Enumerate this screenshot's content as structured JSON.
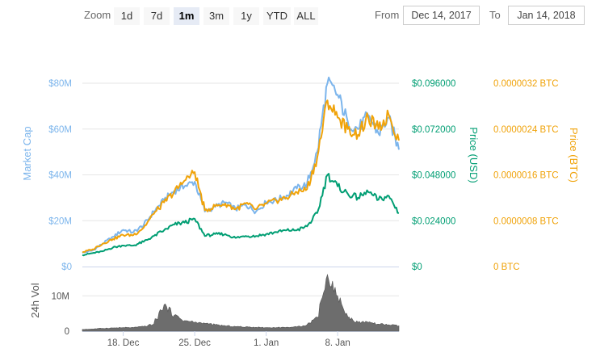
{
  "range_selector": {
    "zoom_label": "Zoom",
    "buttons": [
      "1d",
      "7d",
      "1m",
      "3m",
      "1y",
      "YTD",
      "ALL"
    ],
    "selected": "1m",
    "from_label": "From",
    "from_value": "Dec 14, 2017",
    "to_label": "To",
    "to_value": "Jan 14, 2018"
  },
  "colors": {
    "market_cap": "#7cb5ec",
    "price_usd": "#009e73",
    "price_btc": "#f0a30a",
    "volume": "#6d6d6d"
  },
  "chart_data": [
    {
      "type": "line",
      "x_range": [
        "2017-12-14",
        "2018-01-14"
      ],
      "x_ticks": [
        "18. Dec",
        "25. Dec",
        "1. Jan",
        "8. Jan"
      ],
      "axes": {
        "market_cap": {
          "label": "Market Cap",
          "ticks": [
            "$0",
            "$20M",
            "$40M",
            "$60M",
            "$80M"
          ],
          "ylim": [
            0,
            80000000
          ]
        },
        "price_usd": {
          "label": "Price (USD)",
          "ticks": [
            "$0",
            "$0.024000",
            "$0.048000",
            "$0.072000",
            "$0.096000"
          ],
          "ylim": [
            0,
            0.096
          ]
        },
        "price_btc": {
          "label": "Price (BTC)",
          "ticks": [
            "0 BTC",
            "0.0000008 BTC",
            "0.0000016 BTC",
            "0.0000024 BTC",
            "0.0000032 BTC"
          ],
          "ylim": [
            0,
            3.2e-06
          ]
        }
      },
      "series": [
        {
          "key": "market_cap",
          "axis": "market_cap",
          "points": [
            [
              "2017-12-14",
              6
            ],
            [
              "2017-12-15",
              7
            ],
            [
              "2017-12-16",
              10
            ],
            [
              "2017-12-17",
              13
            ],
            [
              "2017-12-18",
              16
            ],
            [
              "2017-12-19",
              15
            ],
            [
              "2017-12-20",
              18
            ],
            [
              "2017-12-21",
              24
            ],
            [
              "2017-12-22",
              29
            ],
            [
              "2017-12-23",
              33
            ],
            [
              "2017-12-24",
              35
            ],
            [
              "2017-12-25",
              37
            ],
            [
              "2017-12-26",
              24
            ],
            [
              "2017-12-27",
              26
            ],
            [
              "2017-12-28",
              28
            ],
            [
              "2017-12-29",
              25
            ],
            [
              "2017-12-30",
              27
            ],
            [
              "2017-12-31",
              24
            ],
            [
              "2018-01-01",
              28
            ],
            [
              "2018-01-02",
              29
            ],
            [
              "2018-01-03",
              31
            ],
            [
              "2018-01-04",
              34
            ],
            [
              "2018-01-05",
              36
            ],
            [
              "2018-01-06",
              50
            ],
            [
              "2018-01-07",
              80
            ],
            [
              "2018-01-08",
              75
            ],
            [
              "2018-01-09",
              63
            ],
            [
              "2018-01-10",
              60
            ],
            [
              "2018-01-11",
              66
            ],
            [
              "2018-01-12",
              58
            ],
            [
              "2018-01-13",
              65
            ],
            [
              "2018-01-14",
              51
            ]
          ]
        },
        {
          "key": "price_usd",
          "axis": "price_usd",
          "points": [
            [
              "2017-12-14",
              0.006
            ],
            [
              "2017-12-15",
              0.007
            ],
            [
              "2017-12-16",
              0.008
            ],
            [
              "2017-12-17",
              0.01
            ],
            [
              "2017-12-18",
              0.011
            ],
            [
              "2017-12-19",
              0.011
            ],
            [
              "2017-12-20",
              0.013
            ],
            [
              "2017-12-21",
              0.016
            ],
            [
              "2017-12-22",
              0.019
            ],
            [
              "2017-12-23",
              0.022
            ],
            [
              "2017-12-24",
              0.023
            ],
            [
              "2017-12-25",
              0.025
            ],
            [
              "2017-12-26",
              0.016
            ],
            [
              "2017-12-27",
              0.017
            ],
            [
              "2017-12-28",
              0.017
            ],
            [
              "2017-12-29",
              0.015
            ],
            [
              "2017-12-30",
              0.016
            ],
            [
              "2017-12-31",
              0.016
            ],
            [
              "2018-01-01",
              0.017
            ],
            [
              "2018-01-02",
              0.018
            ],
            [
              "2018-01-03",
              0.019
            ],
            [
              "2018-01-04",
              0.019
            ],
            [
              "2018-01-05",
              0.021
            ],
            [
              "2018-01-06",
              0.028
            ],
            [
              "2018-01-07",
              0.048
            ],
            [
              "2018-01-08",
              0.042
            ],
            [
              "2018-01-09",
              0.038
            ],
            [
              "2018-01-10",
              0.036
            ],
            [
              "2018-01-11",
              0.039
            ],
            [
              "2018-01-12",
              0.035
            ],
            [
              "2018-01-13",
              0.037
            ],
            [
              "2018-01-14",
              0.028
            ]
          ]
        },
        {
          "key": "price_btc",
          "axis": "price_btc",
          "points": [
            [
              "2017-12-14",
              2.5e-07
            ],
            [
              "2017-12-15",
              3e-07
            ],
            [
              "2017-12-16",
              4e-07
            ],
            [
              "2017-12-17",
              4.8e-07
            ],
            [
              "2017-12-18",
              5.5e-07
            ],
            [
              "2017-12-19",
              5.5e-07
            ],
            [
              "2017-12-20",
              6.8e-07
            ],
            [
              "2017-12-21",
              9.2e-07
            ],
            [
              "2017-12-22",
              1.12e-06
            ],
            [
              "2017-12-23",
              1.3e-06
            ],
            [
              "2017-12-24",
              1.5e-06
            ],
            [
              "2017-12-25",
              1.65e-06
            ],
            [
              "2017-12-26",
              9.8e-07
            ],
            [
              "2017-12-27",
              1.05e-06
            ],
            [
              "2017-12-28",
              1.1e-06
            ],
            [
              "2017-12-29",
              1e-06
            ],
            [
              "2017-12-30",
              1.1e-06
            ],
            [
              "2017-12-31",
              1e-06
            ],
            [
              "2018-01-01",
              1.1e-06
            ],
            [
              "2018-01-02",
              1.15e-06
            ],
            [
              "2018-01-03",
              1.2e-06
            ],
            [
              "2018-01-04",
              1.3e-06
            ],
            [
              "2018-01-05",
              1.35e-06
            ],
            [
              "2018-01-06",
              1.9e-06
            ],
            [
              "2018-01-07",
              2.9e-06
            ],
            [
              "2018-01-08",
              2.6e-06
            ],
            [
              "2018-01-09",
              2.4e-06
            ],
            [
              "2018-01-10",
              2.3e-06
            ],
            [
              "2018-01-11",
              2.6e-06
            ],
            [
              "2018-01-12",
              2.4e-06
            ],
            [
              "2018-01-13",
              2.65e-06
            ],
            [
              "2018-01-14",
              2.2e-06
            ]
          ]
        }
      ]
    },
    {
      "type": "area",
      "ylabel": "24h Vol",
      "y_ticks": [
        "0",
        "10M"
      ],
      "ylim": [
        0,
        16000000
      ],
      "points": [
        [
          "2017-12-14",
          500000
        ],
        [
          "2017-12-15",
          600000
        ],
        [
          "2017-12-16",
          800000
        ],
        [
          "2017-12-17",
          900000
        ],
        [
          "2017-12-18",
          1000000
        ],
        [
          "2017-12-19",
          1000000
        ],
        [
          "2017-12-20",
          1300000
        ],
        [
          "2017-12-21",
          2000000
        ],
        [
          "2017-12-22",
          7500000
        ],
        [
          "2017-12-23",
          4500000
        ],
        [
          "2017-12-24",
          3000000
        ],
        [
          "2017-12-25",
          2500000
        ],
        [
          "2017-12-26",
          2200000
        ],
        [
          "2017-12-27",
          1800000
        ],
        [
          "2017-12-28",
          1500000
        ],
        [
          "2017-12-29",
          1300000
        ],
        [
          "2017-12-30",
          1200000
        ],
        [
          "2017-12-31",
          1100000
        ],
        [
          "2018-01-01",
          1000000
        ],
        [
          "2018-01-02",
          1000000
        ],
        [
          "2018-01-03",
          1100000
        ],
        [
          "2018-01-04",
          1200000
        ],
        [
          "2018-01-05",
          1800000
        ],
        [
          "2018-01-06",
          4000000
        ],
        [
          "2018-01-07",
          16000000
        ],
        [
          "2018-01-08",
          10000000
        ],
        [
          "2018-01-09",
          4000000
        ],
        [
          "2018-01-10",
          2500000
        ],
        [
          "2018-01-11",
          2500000
        ],
        [
          "2018-01-12",
          2000000
        ],
        [
          "2018-01-13",
          1800000
        ],
        [
          "2018-01-14",
          1500000
        ]
      ]
    }
  ]
}
